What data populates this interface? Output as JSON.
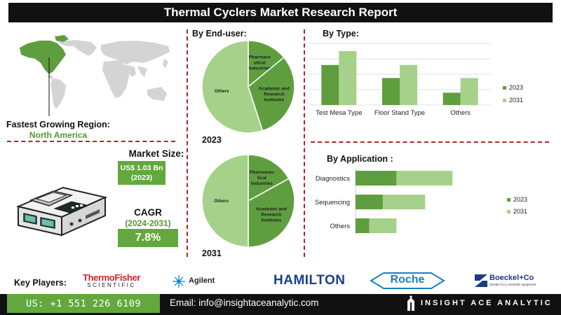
{
  "title": "Thermal Cyclers Market Research Report",
  "region": {
    "label": "Fastest Growing Region:",
    "value": "North America"
  },
  "market_size": {
    "label": "Market Size:",
    "value": "US$ 1.03 Bn",
    "year": "(2023)"
  },
  "cagr": {
    "label": "CAGR",
    "period": "(2024-2031)",
    "value": "7.8%"
  },
  "end_user": {
    "title": "By End-user:",
    "year_2023": "2023",
    "year_2031": "2031"
  },
  "by_type": {
    "title": "By Type:"
  },
  "by_application": {
    "title": "By Application :"
  },
  "key_players": {
    "label": "Key Players:",
    "thermo_line1": "ThermoFisher",
    "thermo_line2": "SCIENTIFIC",
    "agilent": "Agilent",
    "hamilton": "HAMILTON",
    "roche": "Roche",
    "boeckel": "Boeckel+Co",
    "boeckel_sub": "(GmbH+Co.) scientific equipment"
  },
  "footer": {
    "phone": "US: +1 551 226 6109",
    "email": "Email: info@insightaceanalytic.com",
    "brand": "INSIGHT ACE ANALYTIC"
  },
  "colors": {
    "dark_green": "#5f9e3f",
    "light_green": "#a6d18a",
    "accent_red": "#b0252a"
  },
  "chart_data": [
    {
      "type": "pie",
      "year": "2023",
      "labels": [
        "Pharmaceutical Industries",
        "Academic and Research Institutes",
        "Others"
      ],
      "label_lines": [
        [
          "Pharmace",
          "utical",
          "Industries"
        ],
        [
          "Academic and",
          "Research",
          "Institutes"
        ],
        [
          "Others"
        ]
      ],
      "values": [
        14,
        31,
        55
      ],
      "colors": [
        "#5f9e3f",
        "#5f9e3f",
        "#a6d18a"
      ]
    },
    {
      "type": "pie",
      "year": "2031",
      "labels": [
        "Pharmaceutical Industries",
        "Academic and Research Institutes",
        "Others"
      ],
      "label_lines": [
        [
          "Pharmaceu",
          "tical",
          "Industries"
        ],
        [
          "Academic and",
          "Research",
          "Institutes"
        ],
        [
          "Others"
        ]
      ],
      "values": [
        17,
        33,
        50
      ],
      "colors": [
        "#5f9e3f",
        "#5f9e3f",
        "#a6d18a"
      ]
    },
    {
      "type": "bar",
      "categories": [
        "Test Mesa Type",
        "Floor Stand Type",
        "Others"
      ],
      "series": [
        {
          "name": "2023",
          "values": [
            5.2,
            3.5,
            1.6
          ],
          "color": "#5f9e3f"
        },
        {
          "name": "2031",
          "values": [
            7.0,
            5.2,
            3.5
          ],
          "color": "#a6d18a"
        }
      ],
      "ylim": [
        0,
        8
      ],
      "grid": true,
      "legend": "right"
    },
    {
      "type": "bar",
      "orientation": "horizontal",
      "stacked": true,
      "categories": [
        "Diagnostics",
        "Sequencing",
        "Others"
      ],
      "series": [
        {
          "name": "2023",
          "values": [
            3.0,
            2.0,
            1.0
          ],
          "color": "#5f9e3f"
        },
        {
          "name": "2031",
          "values": [
            4.1,
            3.1,
            2.0
          ],
          "color": "#a6d18a"
        }
      ],
      "xlim": [
        0,
        7.5
      ],
      "legend": "right"
    }
  ]
}
